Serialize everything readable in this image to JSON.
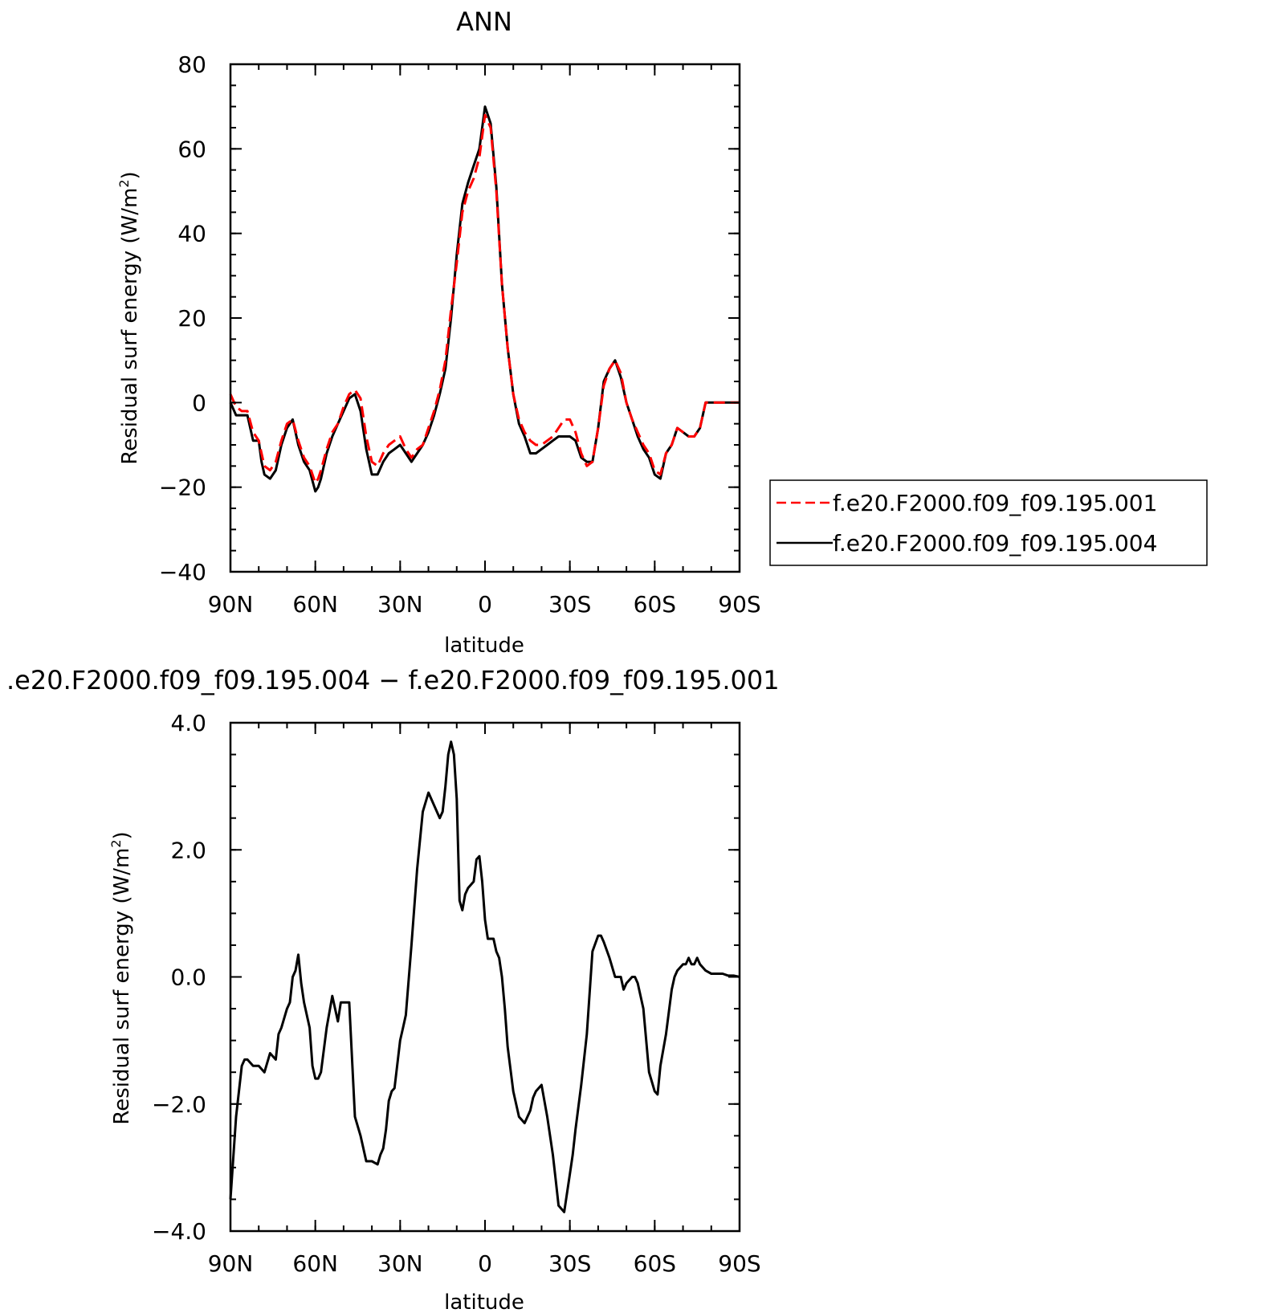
{
  "chart_data": [
    {
      "type": "line",
      "title": "ANN",
      "xlabel": "latitude",
      "ylabel": "Residual surf energy (W/m²)",
      "ylabel_main": "Residual surf energy (W/m",
      "ylabel_sup": "2",
      "ylabel_close": ")",
      "xlim": [
        90,
        -90
      ],
      "ylim": [
        -40,
        80
      ],
      "x_ticks": [
        90,
        60,
        30,
        0,
        -30,
        -60,
        -90
      ],
      "x_tick_labels": [
        "90N",
        "60N",
        "30N",
        "0",
        "30S",
        "60S",
        "90S"
      ],
      "y_ticks": [
        -40,
        -20,
        0,
        20,
        40,
        60,
        80
      ],
      "y_tick_labels": [
        "−40",
        "−20",
        "0",
        "20",
        "40",
        "60",
        "80"
      ],
      "legend_placement": "right",
      "x": [
        90,
        88,
        86,
        84,
        82,
        80,
        79,
        78,
        76,
        74,
        72,
        70,
        68,
        66,
        64,
        62,
        60,
        59,
        58,
        56,
        54,
        52,
        50,
        48,
        46,
        44,
        42,
        40,
        38,
        36,
        34,
        32,
        30,
        28,
        26,
        24,
        22,
        20,
        18,
        16,
        14,
        12,
        10,
        8,
        6,
        4,
        2,
        0,
        -2,
        -4,
        -6,
        -8,
        -10,
        -12,
        -14,
        -16,
        -18,
        -20,
        -22,
        -24,
        -26,
        -28,
        -30,
        -32,
        -34,
        -36,
        -38,
        -40,
        -42,
        -44,
        -46,
        -48,
        -50,
        -52,
        -54,
        -56,
        -58,
        -60,
        -62,
        -64,
        -66,
        -68,
        -70,
        -72,
        -74,
        -76,
        -78,
        -80,
        -82,
        -84,
        -86,
        -88,
        -90
      ],
      "series": [
        {
          "name": "f.e20.F2000.f09_f09.195.001",
          "color": "#ff0000",
          "dash": "dashed",
          "values": [
            2,
            -1,
            -2,
            -2,
            -7,
            -9,
            -12,
            -15,
            -16,
            -14,
            -9,
            -5,
            -4,
            -9,
            -13,
            -15,
            -19,
            -18,
            -16,
            -11,
            -7,
            -5,
            -1,
            2,
            3,
            1,
            -8,
            -14,
            -15,
            -12,
            -10,
            -9,
            -8,
            -11,
            -13,
            -11,
            -10,
            -6,
            -2,
            3,
            10,
            22,
            33,
            45,
            50,
            53,
            58,
            68,
            65,
            50,
            28,
            13,
            2,
            -4,
            -7,
            -9,
            -10,
            -10,
            -9,
            -8,
            -6,
            -4,
            -4,
            -7,
            -12,
            -15,
            -14,
            -6,
            4,
            8,
            10,
            7,
            0,
            -4,
            -7,
            -10,
            -12,
            -16,
            -17,
            -12,
            -10,
            -6,
            -7,
            -8,
            -8,
            -6,
            0,
            0,
            0,
            0,
            0,
            0,
            0
          ]
        },
        {
          "name": "f.e20.F2000.f09_f09.195.004",
          "color": "#000000",
          "dash": "solid",
          "values": [
            0,
            -3,
            -3,
            -3,
            -9,
            -9,
            -14,
            -17,
            -18,
            -16,
            -10,
            -6,
            -4,
            -10,
            -14,
            -16,
            -21,
            -20,
            -18,
            -12,
            -8,
            -5,
            -2,
            1,
            2,
            -2,
            -11,
            -17,
            -17,
            -14,
            -12,
            -11,
            -10,
            -12,
            -14,
            -12,
            -10,
            -7,
            -3,
            2,
            8,
            20,
            35,
            47,
            52,
            56,
            60,
            70,
            66,
            51,
            28,
            13,
            2,
            -5,
            -8,
            -12,
            -12,
            -11,
            -10,
            -9,
            -8,
            -8,
            -8,
            -9,
            -13,
            -14,
            -14,
            -6,
            5,
            8,
            10,
            6,
            0,
            -4,
            -8,
            -11,
            -13,
            -17,
            -18,
            -12,
            -10,
            -6,
            -7,
            -8,
            -8,
            -6,
            0,
            0,
            0,
            0,
            0,
            0,
            0
          ]
        }
      ]
    },
    {
      "type": "line",
      "title": ".e20.F2000.f09_f09.195.004 − f.e20.F2000.f09_f09.195.001",
      "xlabel": "latitude",
      "ylabel": "Residual surf energy (W/m²)",
      "ylabel_main": "Residual surf energy (W/m",
      "ylabel_sup": "2",
      "ylabel_close": ")",
      "xlim": [
        90,
        -90
      ],
      "ylim": [
        -4.0,
        4.0
      ],
      "x_ticks": [
        90,
        60,
        30,
        0,
        -30,
        -60,
        -90
      ],
      "x_tick_labels": [
        "90N",
        "60N",
        "30N",
        "0",
        "30S",
        "60S",
        "90S"
      ],
      "y_ticks": [
        -4.0,
        -2.0,
        0.0,
        2.0,
        4.0
      ],
      "y_tick_labels": [
        "−4.0",
        "−2.0",
        "0.0",
        "2.0",
        "4.0"
      ],
      "x": [
        90,
        88,
        86,
        85,
        84,
        82,
        80,
        78,
        76,
        74,
        73,
        72,
        70,
        69,
        68,
        67,
        66,
        65,
        64,
        62,
        61,
        60,
        59,
        58,
        56,
        54,
        52,
        51,
        50,
        48,
        46,
        44,
        42,
        40,
        38,
        37,
        36,
        35,
        34,
        33,
        32,
        30,
        29,
        28,
        26,
        24,
        22,
        20,
        18,
        16,
        15,
        14,
        13,
        12,
        11,
        10,
        9,
        8,
        7,
        6,
        5,
        4,
        3,
        2,
        1,
        0,
        -1,
        -2,
        -3,
        -4,
        -5,
        -6,
        -7,
        -8,
        -10,
        -12,
        -14,
        -16,
        -17,
        -18,
        -20,
        -22,
        -24,
        -25,
        -26,
        -28,
        -30,
        -31,
        -32,
        -34,
        -36,
        -38,
        -40,
        -41,
        -42,
        -44,
        -46,
        -48,
        -49,
        -50,
        -52,
        -53,
        -54,
        -56,
        -58,
        -60,
        -61,
        -62,
        -64,
        -66,
        -67,
        -68,
        -70,
        -71,
        -72,
        -73,
        -74,
        -75,
        -76,
        -78,
        -80,
        -82,
        -84,
        -86,
        -88,
        -90
      ],
      "series": [
        {
          "name": "",
          "color": "#000000",
          "dash": "solid",
          "values": [
            -3.5,
            -2.2,
            -1.4,
            -1.3,
            -1.3,
            -1.4,
            -1.4,
            -1.5,
            -1.2,
            -1.3,
            -0.9,
            -0.8,
            -0.5,
            -0.4,
            0.0,
            0.1,
            0.35,
            -0.1,
            -0.4,
            -0.8,
            -1.4,
            -1.6,
            -1.6,
            -1.5,
            -0.8,
            -0.3,
            -0.7,
            -0.4,
            -0.4,
            -0.4,
            -2.2,
            -2.5,
            -2.9,
            -2.9,
            -2.95,
            -2.8,
            -2.7,
            -2.4,
            -1.95,
            -1.8,
            -1.75,
            -1.0,
            -0.8,
            -0.6,
            0.5,
            1.7,
            2.6,
            2.9,
            2.7,
            2.5,
            2.6,
            3.0,
            3.5,
            3.7,
            3.5,
            2.8,
            1.2,
            1.05,
            1.3,
            1.4,
            1.45,
            1.5,
            1.85,
            1.9,
            1.5,
            0.9,
            0.6,
            0.6,
            0.6,
            0.4,
            0.3,
            0.0,
            -0.5,
            -1.1,
            -1.8,
            -2.2,
            -2.3,
            -2.1,
            -1.9,
            -1.8,
            -1.7,
            -2.2,
            -2.8,
            -3.2,
            -3.6,
            -3.7,
            -3.1,
            -2.8,
            -2.4,
            -1.7,
            -0.9,
            0.4,
            0.65,
            0.65,
            0.55,
            0.3,
            0.0,
            0.0,
            -0.2,
            -0.1,
            0.0,
            0.0,
            -0.1,
            -0.5,
            -1.5,
            -1.8,
            -1.85,
            -1.4,
            -0.9,
            -0.2,
            0.0,
            0.1,
            0.2,
            0.2,
            0.3,
            0.2,
            0.2,
            0.3,
            0.2,
            0.1,
            0.05,
            0.05,
            0.05,
            0.02,
            0.02,
            0.0
          ]
        }
      ]
    }
  ]
}
